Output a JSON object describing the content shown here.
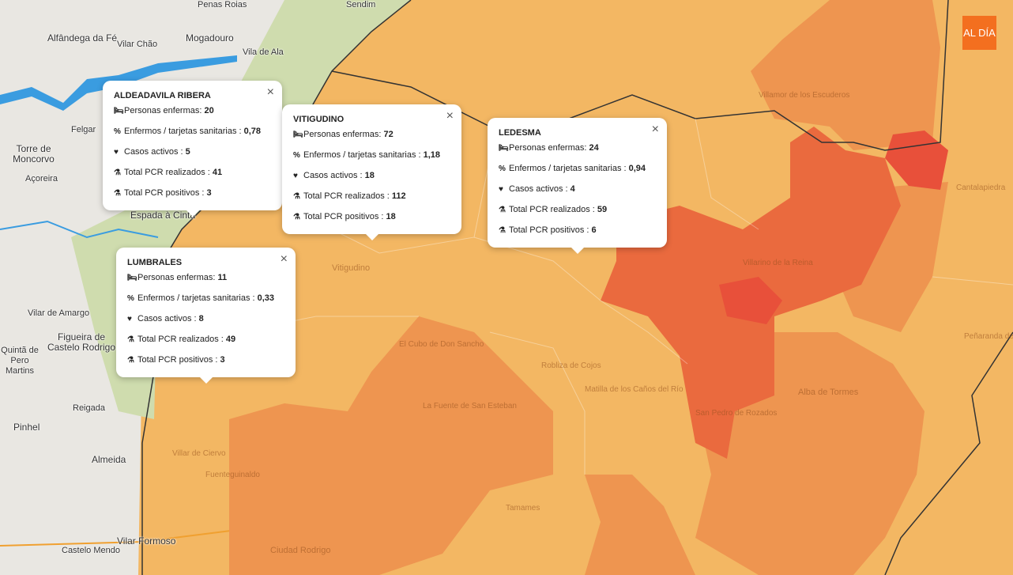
{
  "colors": {
    "base": "#f3b763",
    "medium": "#ee9550",
    "high": "#ea6a3e",
    "highest": "#e8503a",
    "portugal": "#e9e7e2",
    "green": "#cfdcae",
    "water": "#3a9ce0"
  },
  "logo": "AL DÍA",
  "labels_pt": [
    "Penas Roias",
    "Sendim",
    "Alfândega da Fé",
    "Vilar Chão",
    "Mogadouro",
    "Vila de Ala",
    "Felgar",
    "Torre de Moncorvo",
    "Açoreira",
    "Espada à Cinta",
    "Vilar de Amargo",
    "Figueira de Castelo Rodrigo",
    "Quintã de Pero Martins",
    "Reigada",
    "Pinhel",
    "Almeida",
    "Castelo Mendo",
    "Vilar Formoso"
  ],
  "labels_es": [
    "Vitigudino",
    "Ciudad Rodrigo",
    "Alba de Tormes",
    "Peñaranda de Bracamonte",
    "San Pedro de Rozados",
    "Villamor de los Escuderos",
    "Villarino de la Reina",
    "El Cubo de Don Sancho",
    "La Fuente de San Esteban",
    "Robliza de Cojos",
    "Matilla de los Caños del Río",
    "Tamames",
    "Villar de Ciervo",
    "Cantalapiedra",
    "Fuenteguinaldo"
  ],
  "popups": [
    {
      "title": "ALDEADAVILA RIBERA",
      "enfermas": "20",
      "porcentaje": "0,78",
      "activos": "5",
      "pcr_realizados": "41",
      "pcr_positivos": "3"
    },
    {
      "title": "VITIGUDINO",
      "enfermas": "72",
      "porcentaje": "1,18",
      "activos": "18",
      "pcr_realizados": "112",
      "pcr_positivos": "18"
    },
    {
      "title": "LEDESMA",
      "enfermas": "24",
      "porcentaje": "0,94",
      "activos": "4",
      "pcr_realizados": "59",
      "pcr_positivos": "6"
    },
    {
      "title": "LUMBRALES",
      "enfermas": "11",
      "porcentaje": "0,33",
      "activos": "8",
      "pcr_realizados": "49",
      "pcr_positivos": "3"
    }
  ],
  "popup_labels": {
    "enfermas": "Personas enfermas: ",
    "porcentaje": "Enfermos / tarjetas sanitarias : ",
    "activos": "Casos activos : ",
    "pcr_realizados": "Total PCR realizados : ",
    "pcr_positivos": "Total PCR positivos : ",
    "close": "×"
  }
}
